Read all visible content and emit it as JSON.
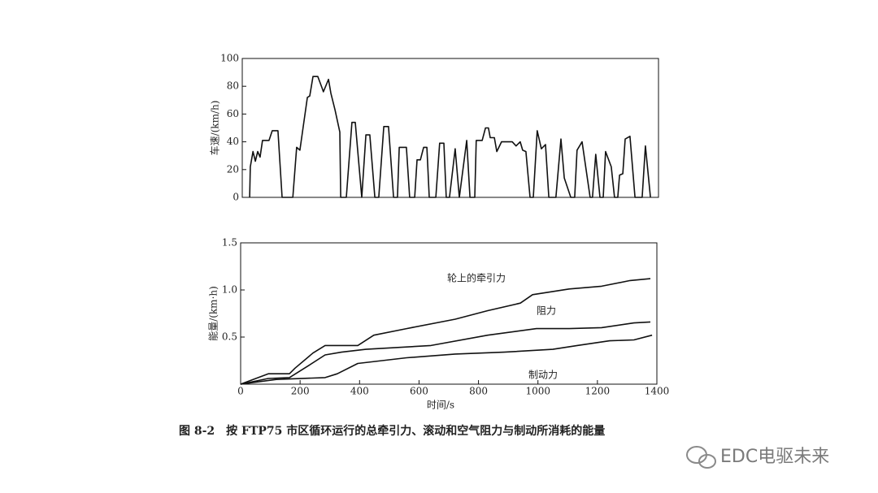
{
  "chart_data": [
    {
      "type": "line",
      "ylabel": "车速/(km/h)",
      "xlim": [
        0,
        1400
      ],
      "ylim": [
        0,
        100
      ],
      "yticks": [
        0,
        20,
        40,
        60,
        80,
        100
      ],
      "color": "#111111",
      "x": [
        25,
        27,
        36,
        44,
        52,
        60,
        68,
        90,
        101,
        120,
        134,
        170,
        183,
        194,
        205,
        219,
        227,
        238,
        254,
        268,
        273,
        290,
        298,
        312,
        328,
        331,
        350,
        369,
        380,
        402,
        416,
        429,
        446,
        459,
        476,
        492,
        509,
        522,
        528,
        552,
        563,
        580,
        588,
        599,
        610,
        621,
        629,
        651,
        664,
        678,
        686,
        697,
        716,
        730,
        755,
        766,
        782,
        787,
        807,
        818,
        828,
        834,
        848,
        856,
        872,
        908,
        921,
        935,
        943,
        954,
        968,
        979,
        992,
        1006,
        1020,
        1031,
        1055,
        1072,
        1083,
        1105,
        1118,
        1126,
        1143,
        1170,
        1178,
        1189,
        1203,
        1214,
        1222,
        1241,
        1252,
        1263,
        1269,
        1280,
        1288,
        1304,
        1321,
        1345,
        1356,
        1373
      ],
      "values": [
        0,
        22,
        33,
        26,
        33,
        29,
        41,
        41,
        48,
        48,
        0,
        0,
        36,
        34,
        51,
        72,
        73,
        87,
        87,
        79,
        76,
        85,
        75,
        63,
        47,
        0,
        0,
        54,
        54,
        0,
        45,
        45,
        0,
        0,
        51,
        51,
        0,
        0,
        36,
        36,
        0,
        0,
        27,
        27,
        36,
        36,
        0,
        0,
        39,
        39,
        0,
        0,
        35,
        0,
        41,
        0,
        0,
        41,
        41,
        50,
        50,
        43,
        43,
        33,
        40,
        40,
        37,
        40,
        34,
        33,
        0,
        0,
        48,
        35,
        38,
        0,
        0,
        42,
        14,
        0,
        0,
        34,
        40,
        0,
        0,
        31,
        0,
        0,
        33,
        22,
        0,
        0,
        16,
        17,
        42,
        44,
        0,
        0,
        37,
        0
      ]
    },
    {
      "type": "line",
      "xlabel": "时间/s",
      "ylabel": "能量/(km·h)",
      "xlim": [
        0,
        1400
      ],
      "ylim": [
        0,
        1.5
      ],
      "xticks": [
        0,
        200,
        400,
        600,
        800,
        1000,
        1200,
        1400
      ],
      "yticks": [
        0.5,
        {
          "value": 1.0,
          "label": "1.0"
        },
        1.5
      ],
      "series": [
        {
          "name": "轮上的牵引力",
          "color": "#111111",
          "x": [
            0,
            93,
            164,
            183,
            243,
            284,
            394,
            448,
            558,
            722,
            831,
            941,
            982,
            1105,
            1214,
            1310,
            1378
          ],
          "values": [
            0,
            0.11,
            0.11,
            0.17,
            0.33,
            0.41,
            0.41,
            0.52,
            0.59,
            0.69,
            0.78,
            0.86,
            0.95,
            1.01,
            1.04,
            1.1,
            1.12
          ]
        },
        {
          "name": "阻力",
          "color": "#111111",
          "x": [
            0,
            93,
            164,
            230,
            284,
            339,
            421,
            640,
            831,
            995,
            1105,
            1214,
            1323,
            1378
          ],
          "values": [
            0,
            0.06,
            0.07,
            0.2,
            0.31,
            0.34,
            0.37,
            0.41,
            0.52,
            0.59,
            0.59,
            0.6,
            0.65,
            0.66
          ]
        },
        {
          "name": "制动力",
          "color": "#111111",
          "x": [
            0,
            120,
            284,
            325,
            394,
            558,
            722,
            886,
            1050,
            1132,
            1241,
            1323,
            1384
          ],
          "values": [
            0,
            0.05,
            0.07,
            0.11,
            0.22,
            0.28,
            0.32,
            0.34,
            0.37,
            0.41,
            0.46,
            0.47,
            0.52
          ]
        }
      ]
    }
  ],
  "caption": "图 8-2　按 FTP75 市区循环运行的总牵引力、滚动和空气阻力与制动所消耗的能量",
  "watermark": "EDC电驱未来"
}
